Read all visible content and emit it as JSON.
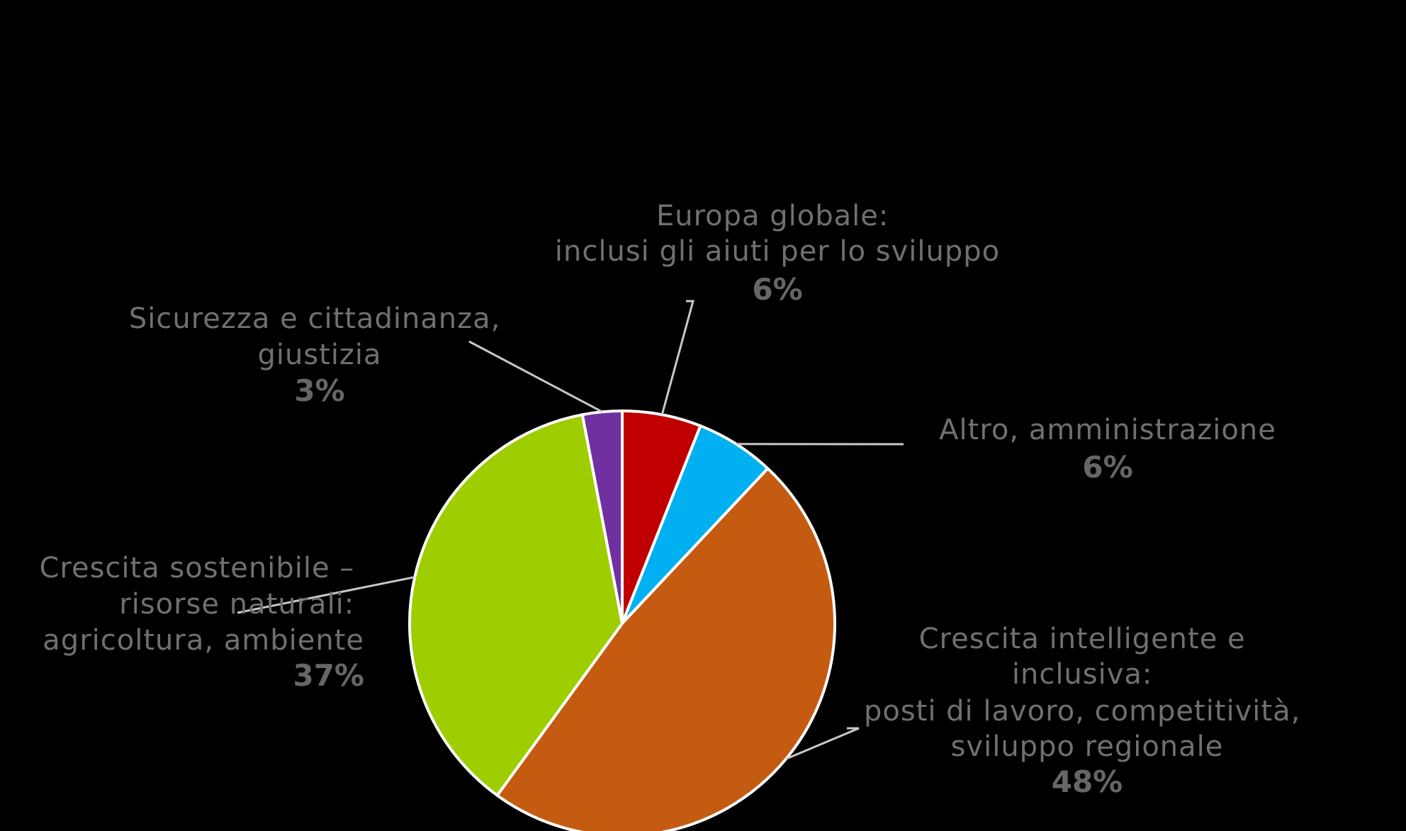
{
  "colors": {
    "background": "#000000",
    "label_text": "#707070",
    "percent_text": "#666666",
    "leader_line": "#c8c8c8",
    "slice_border": "#ffffff"
  },
  "chart_data": {
    "type": "pie",
    "title": "",
    "start_angle_deg": 0,
    "direction": "clockwise",
    "unit": "%",
    "slices": [
      {
        "label_lines": [
          "Europa globale:",
          "inclusi gli aiuti per lo sviluppo"
        ],
        "value": 6,
        "display": "6%",
        "color": "#c00000"
      },
      {
        "label_lines": [
          "Altro, amministrazione"
        ],
        "value": 6,
        "display": "6%",
        "color": "#00b0f0"
      },
      {
        "label_lines": [
          "Crescita intelligente e",
          "inclusiva:",
          "posti di lavoro, competitività,",
          "sviluppo regionale"
        ],
        "value": 48,
        "display": "48%",
        "color": "#c55a11"
      },
      {
        "label_lines": [
          "Crescita sostenibile –",
          "risorse naturali:",
          "agricoltura, ambiente"
        ],
        "value": 37,
        "display": "37%",
        "color": "#9ecd00"
      },
      {
        "label_lines": [
          "Sicurezza e cittadinanza,",
          "giustizia"
        ],
        "value": 3,
        "display": "3%",
        "color": "#7030a0"
      }
    ]
  }
}
